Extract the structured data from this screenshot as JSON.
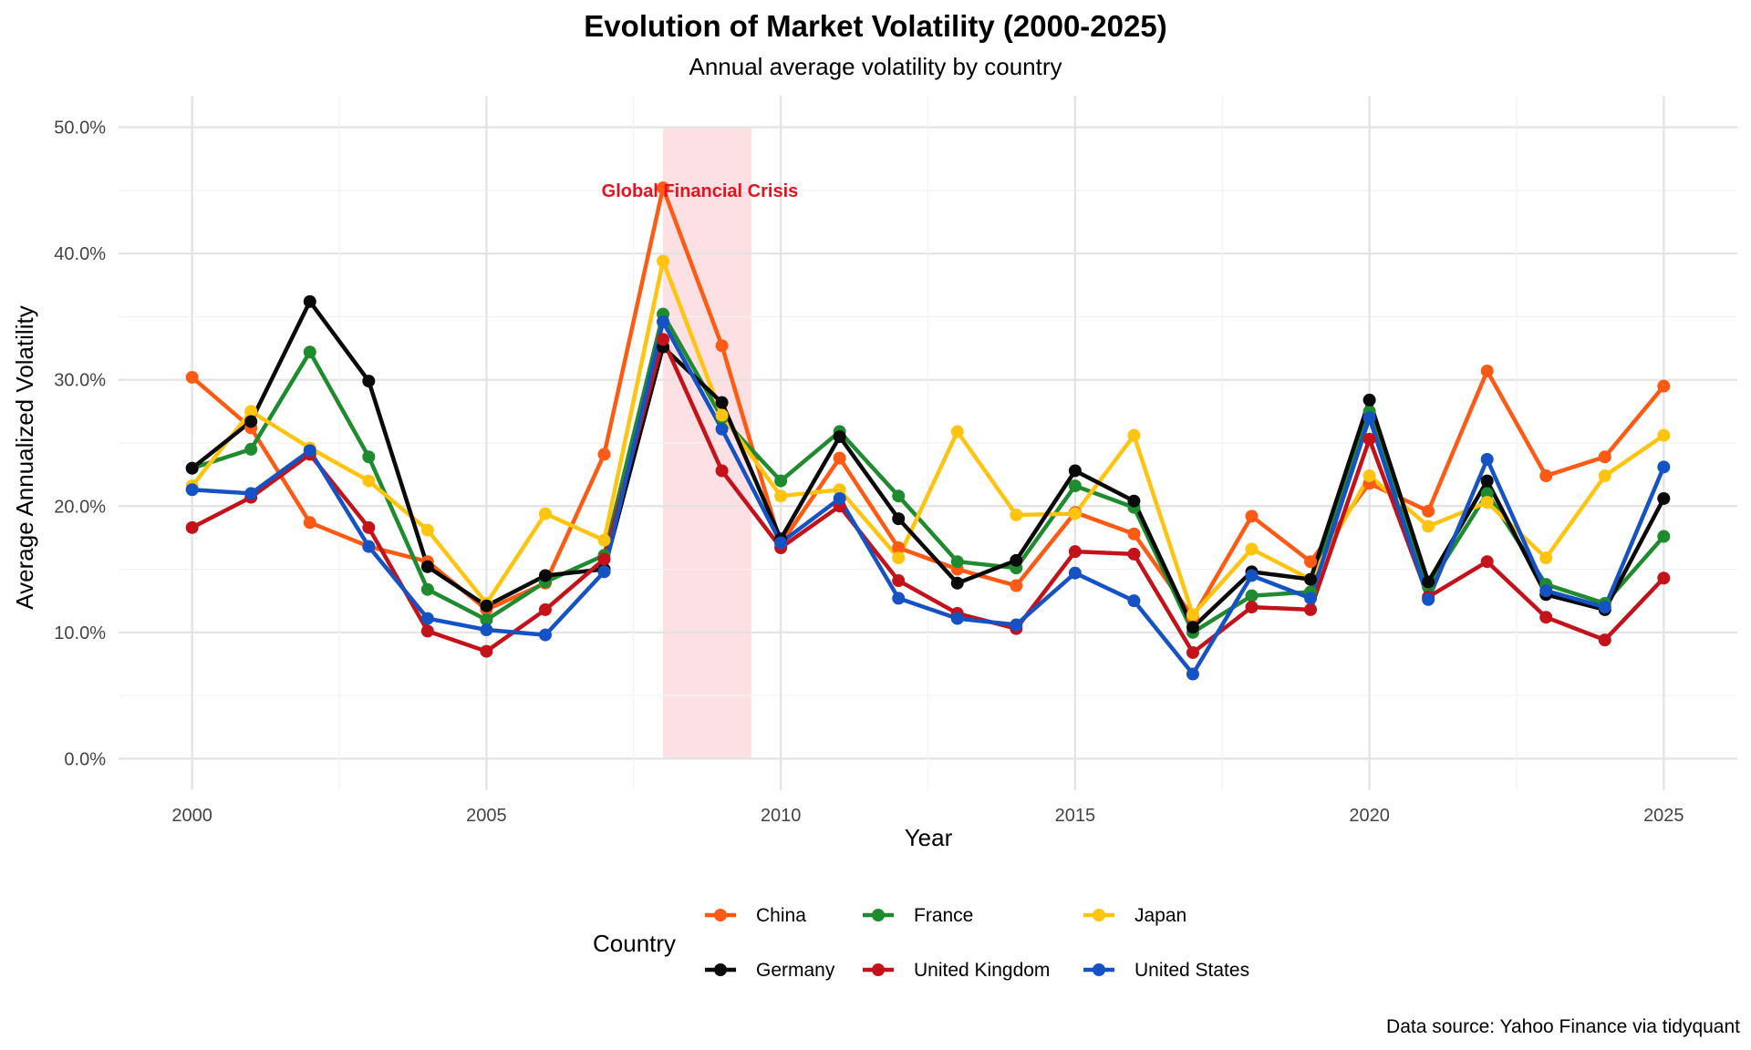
{
  "chart_data": {
    "type": "line",
    "title": "Evolution of Market Volatility (2000-2025)",
    "subtitle": "Annual average volatility by country",
    "xlabel": "Year",
    "ylabel": "Average Annualized Volatility",
    "caption": "Data source: Yahoo Finance via tidyquant",
    "xlim": [
      1998.75,
      2026.25
    ],
    "ylim": [
      -2.5,
      52.5
    ],
    "x_ticks": [
      2000,
      2005,
      2010,
      2015,
      2020,
      2025
    ],
    "x_tick_labels": [
      "2000",
      "2005",
      "2010",
      "2015",
      "2020",
      "2025"
    ],
    "y_ticks": [
      0,
      10,
      20,
      30,
      40,
      50
    ],
    "y_tick_labels": [
      "0.0%",
      "10.0%",
      "20.0%",
      "30.0%",
      "40.0%",
      "50.0%"
    ],
    "grid": true,
    "legend": {
      "title": "Country",
      "position": "bottom",
      "entries": [
        "China",
        "France",
        "Japan",
        "Germany",
        "United Kingdom",
        "United States"
      ]
    },
    "highlight": {
      "x_range": [
        2008,
        2009.5
      ],
      "label": "Global Financial Crisis",
      "color": "#fde0e3",
      "label_color": "#e8111f",
      "label_y": 45
    },
    "x": [
      2000,
      2001,
      2002,
      2003,
      2004,
      2005,
      2006,
      2007,
      2008,
      2009,
      2010,
      2011,
      2012,
      2013,
      2014,
      2015,
      2016,
      2017,
      2018,
      2019,
      2020,
      2021,
      2022,
      2023,
      2024,
      2025
    ],
    "series": [
      {
        "name": "China",
        "color": "#ff5a14",
        "values": [
          30.2,
          26.2,
          18.7,
          16.8,
          15.6,
          11.8,
          13.9,
          24.1,
          45.2,
          32.7,
          17.0,
          23.8,
          16.7,
          15.0,
          13.7,
          19.5,
          17.8,
          11.2,
          19.2,
          15.6,
          21.8,
          19.6,
          30.7,
          22.4,
          23.9,
          29.5
        ]
      },
      {
        "name": "France",
        "color": "#1e8b2e",
        "values": [
          23.0,
          24.5,
          32.2,
          23.9,
          13.4,
          11.0,
          14.0,
          16.1,
          35.2,
          27.0,
          22.0,
          25.9,
          20.8,
          15.6,
          15.1,
          21.6,
          19.9,
          10.0,
          12.9,
          13.2,
          27.5,
          13.6,
          21.0,
          13.8,
          12.3,
          17.6
        ]
      },
      {
        "name": "Japan",
        "color": "#ffc40f",
        "values": [
          21.6,
          27.5,
          24.6,
          22.0,
          18.1,
          12.3,
          19.4,
          17.3,
          39.4,
          27.2,
          20.8,
          21.3,
          15.9,
          25.9,
          19.3,
          19.4,
          25.6,
          11.4,
          16.6,
          14.2,
          22.4,
          18.4,
          20.3,
          15.9,
          22.4,
          25.6
        ]
      },
      {
        "name": "Germany",
        "color": "#0a0a0a",
        "values": [
          23.0,
          26.7,
          36.2,
          29.9,
          15.2,
          12.1,
          14.5,
          15.0,
          32.6,
          28.2,
          17.4,
          25.5,
          19.0,
          13.9,
          15.7,
          22.8,
          20.4,
          10.4,
          14.8,
          14.2,
          28.4,
          14.0,
          22.0,
          13.0,
          11.8,
          20.6
        ]
      },
      {
        "name": "United Kingdom",
        "color": "#c4121a",
        "values": [
          18.3,
          20.7,
          24.1,
          18.3,
          10.1,
          8.5,
          11.8,
          15.8,
          33.2,
          22.8,
          16.7,
          20.0,
          14.1,
          11.5,
          10.3,
          16.4,
          16.2,
          8.4,
          12.0,
          11.8,
          25.3,
          12.8,
          15.6,
          11.2,
          9.4,
          14.3
        ]
      },
      {
        "name": "United States",
        "color": "#1553c4",
        "values": [
          21.3,
          21.0,
          24.4,
          16.8,
          11.1,
          10.2,
          9.8,
          14.8,
          34.6,
          26.1,
          17.1,
          20.6,
          12.7,
          11.1,
          10.6,
          14.7,
          12.5,
          6.7,
          14.5,
          12.7,
          27.0,
          12.6,
          23.7,
          13.3,
          12.0,
          23.1
        ]
      }
    ]
  }
}
